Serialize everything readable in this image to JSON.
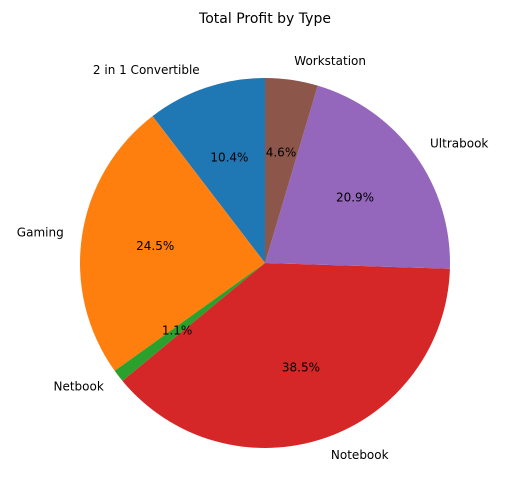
{
  "chart_data": {
    "type": "pie",
    "title": "Total Profit by Type",
    "categories": [
      "2 in 1 Convertible",
      "Gaming",
      "Netbook",
      "Notebook",
      "Ultrabook",
      "Workstation"
    ],
    "values": [
      10.4,
      24.5,
      1.1,
      38.5,
      20.9,
      4.6
    ],
    "labels_pct": [
      "10.4%",
      "24.5%",
      "1.1%",
      "38.5%",
      "20.9%",
      "4.6%"
    ],
    "colors": [
      "#1f77b4",
      "#ff7f0e",
      "#2ca02c",
      "#d62728",
      "#9467bd",
      "#8c564b"
    ],
    "start_angle_deg": 90,
    "direction": "counterclockwise",
    "legend": "none"
  }
}
